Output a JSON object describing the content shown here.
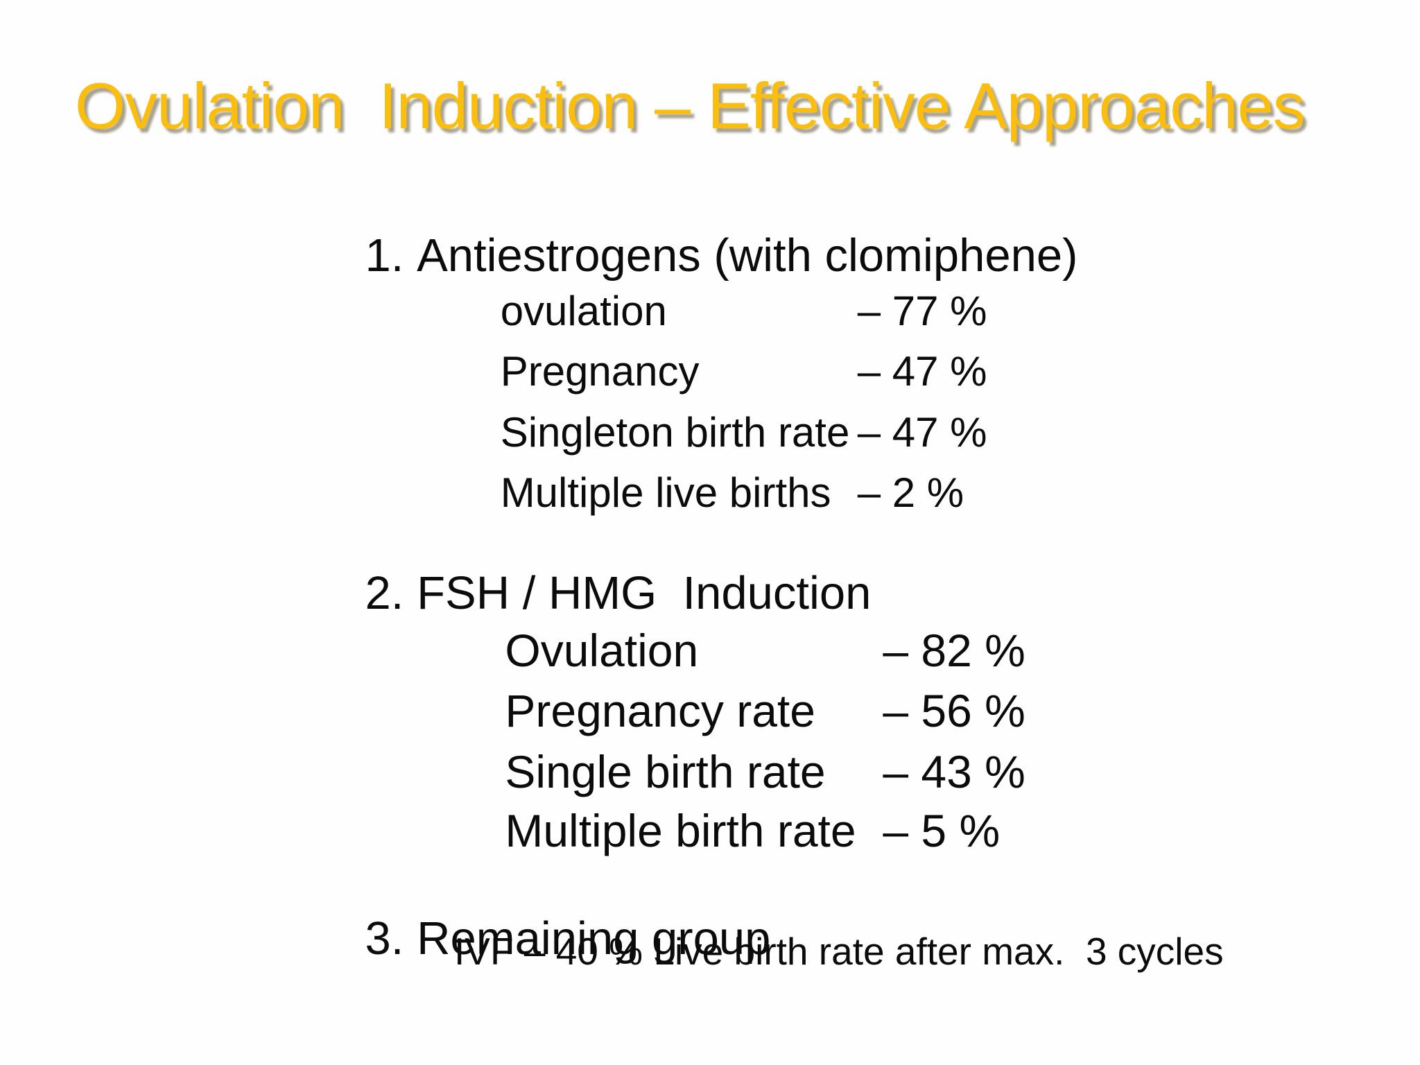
{
  "slide": {
    "title": "Ovulation  Induction – Effective Approaches",
    "colors": {
      "title_gold": "#FBBE0E",
      "title_shadow": "#78704F",
      "body_text": "#0B0B0B",
      "background": "#FEFEFE"
    },
    "sections": [
      {
        "number": "1.",
        "heading": "Antiestrogens (with clomiphene)",
        "items": [
          {
            "label": "ovulation",
            "value": "– 77 %"
          },
          {
            "label": "Pregnancy",
            "value": "– 47 %"
          },
          {
            "label": "Singleton birth rate",
            "value": "– 47 %"
          },
          {
            "label": "Multiple live births",
            "value": "– 2 %"
          }
        ]
      },
      {
        "number": "2.",
        "heading": "FSH / HMG  Induction",
        "items": [
          {
            "label": "Ovulation",
            "value": "– 82 %"
          },
          {
            "label": "Pregnancy rate",
            "value": "– 56 %"
          },
          {
            "label": "Single birth rate",
            "value": "– 43 %"
          },
          {
            "label": "Multiple birth rate",
            "value": "– 5 %"
          }
        ]
      },
      {
        "number": "3.",
        "heading": "Remaining group",
        "items": [],
        "note": "IVF – 40 % Live birth rate after max.  3 cycles"
      }
    ]
  }
}
